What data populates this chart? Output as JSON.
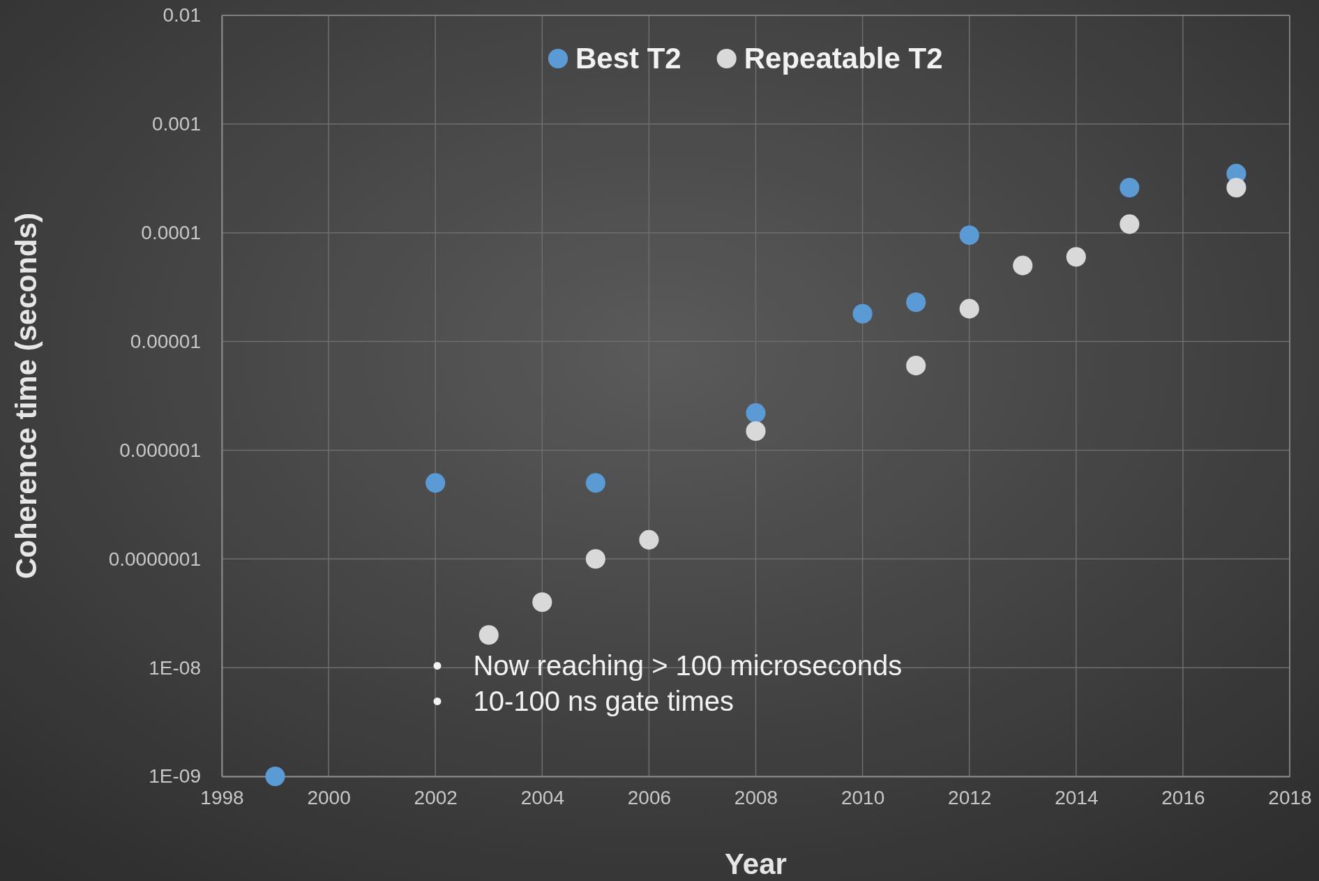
{
  "chart_data": {
    "type": "scatter",
    "xlabel": "Year",
    "ylabel": "Coherence time (seconds)",
    "log": true,
    "grid": true,
    "legend": "top",
    "marker": "circle",
    "xlim": [
      1998,
      2018
    ],
    "xticks": [
      1998,
      2000,
      2002,
      2004,
      2006,
      2008,
      2010,
      2012,
      2014,
      2016,
      2018
    ],
    "ylim": [
      1e-09,
      0.01
    ],
    "yticks": [
      {
        "value": 1e-09,
        "label": "1E-09"
      },
      {
        "value": 1e-08,
        "label": "1E-08"
      },
      {
        "value": 1e-07,
        "label": "0.0000001"
      },
      {
        "value": 1e-06,
        "label": "0.000001"
      },
      {
        "value": 1e-05,
        "label": "0.00001"
      },
      {
        "value": 0.0001,
        "label": "0.0001"
      },
      {
        "value": 0.001,
        "label": "0.001"
      },
      {
        "value": 0.01,
        "label": "0.01"
      }
    ],
    "series": [
      {
        "name": "Best T2",
        "color": "#5b9bd5",
        "x": [
          1999,
          2002,
          2005,
          2008,
          2010,
          2011,
          2012,
          2015,
          2017
        ],
        "values": [
          1e-09,
          5e-07,
          5e-07,
          2.2e-06,
          1.8e-05,
          2.3e-05,
          9.5e-05,
          0.00026,
          0.00035
        ]
      },
      {
        "name": "Repeatable T2",
        "color": "#d9d9d9",
        "x": [
          2003,
          2004,
          2005,
          2006,
          2008,
          2011,
          2012,
          2013,
          2014,
          2015,
          2017
        ],
        "values": [
          2e-08,
          4e-08,
          1e-07,
          1.5e-07,
          1.5e-06,
          6e-06,
          2e-05,
          5e-05,
          6e-05,
          0.00012,
          0.00026
        ]
      }
    ],
    "annotations": [
      "•    Now reaching > 100 microseconds",
      "•    10-100 ns gate times"
    ]
  }
}
